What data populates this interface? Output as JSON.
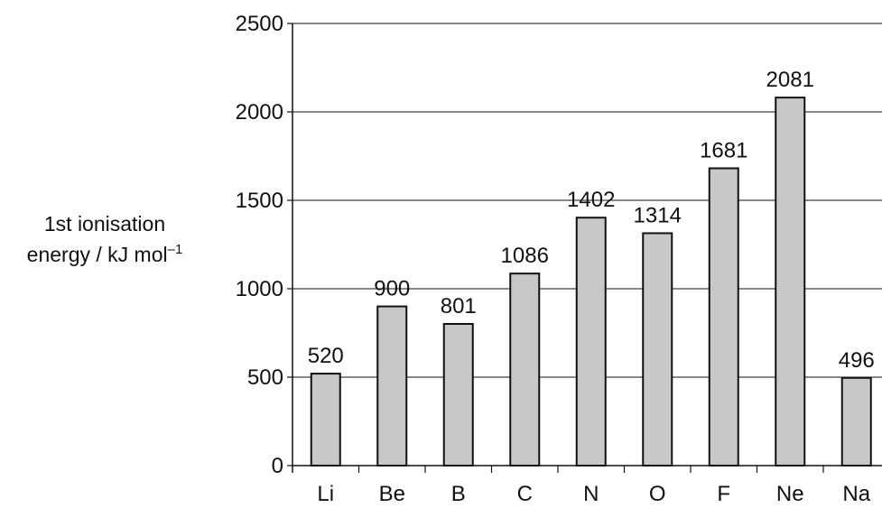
{
  "chart_data": {
    "type": "bar",
    "categories": [
      "Li",
      "Be",
      "B",
      "C",
      "N",
      "O",
      "F",
      "Ne",
      "Na"
    ],
    "values": [
      520,
      900,
      801,
      1086,
      1402,
      1314,
      1681,
      2081,
      496
    ],
    "data_labels": [
      "520",
      "900",
      "801",
      "1086",
      "1402",
      "1314",
      "1681",
      "2081",
      "496"
    ],
    "ylabel_line1": "1st ionisation",
    "ylabel_line2_text": "energy / kJ mol",
    "ylabel_line2_sup": "–1",
    "xlabel": "",
    "title": "",
    "ylim": [
      0,
      2500
    ],
    "yticks": [
      0,
      500,
      1000,
      1500,
      2000,
      2500
    ],
    "grid": true,
    "bar_color": "#c8c8c8",
    "bar_edge_color": "#111111"
  }
}
